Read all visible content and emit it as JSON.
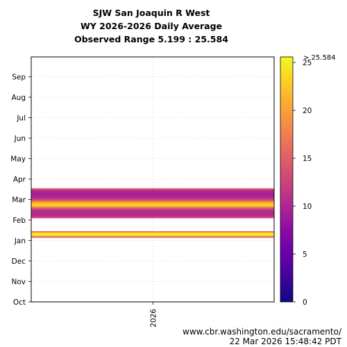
{
  "title": {
    "line1": "SJW San Joaquin R West",
    "line2": "WY 2026-2026 Daily Average",
    "line3": "Observed Range 5.199 : 25.584"
  },
  "footer": {
    "url": "www.cbr.washington.edu/sacramento/",
    "timestamp": "22 Mar 2026 15:48:42 PDT"
  },
  "chart_data": {
    "type": "heatmap",
    "x_categories": [
      "2026"
    ],
    "y_categories": [
      "Oct",
      "Nov",
      "Dec",
      "Jan",
      "Feb",
      "Mar",
      "Apr",
      "May",
      "Jun",
      "Jul",
      "Aug",
      "Sep"
    ],
    "grid": true,
    "colorbar": {
      "min": 0,
      "max": 25.584,
      "ticks": [
        0,
        5,
        10,
        15,
        20,
        25
      ],
      "max_label": "> 25.584",
      "colormap": "plasma"
    },
    "observed_range": [
      5.199,
      25.584
    ],
    "bands": [
      {
        "from_month": 3.15,
        "to_month": 3.45,
        "value_profile": [
          12,
          23,
          25.5,
          23,
          12
        ]
      },
      {
        "from_month": 4.1,
        "to_month": 5.55,
        "value_profile": [
          16,
          10,
          9.5,
          9.5,
          10.5,
          15,
          22,
          24,
          15,
          10.5,
          10,
          10.5,
          13
        ]
      }
    ]
  }
}
